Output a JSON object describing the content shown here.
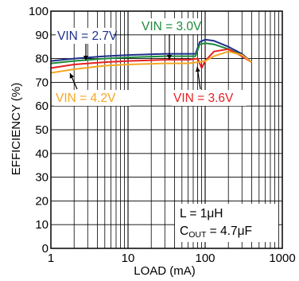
{
  "chart_data": {
    "type": "line",
    "xlabel": "LOAD (mA)",
    "ylabel": "EFFICIENCY (%)",
    "xscale": "log",
    "xlim": [
      1,
      1000
    ],
    "ylim": [
      0,
      100
    ],
    "grid": true,
    "x_ticks": [
      "1",
      "10",
      "100",
      "1000"
    ],
    "y_ticks": [
      "0",
      "10",
      "20",
      "30",
      "40",
      "50",
      "60",
      "70",
      "80",
      "90",
      "100"
    ],
    "series": [
      {
        "name": "VIN = 2.7V",
        "color": "#1f2f8a",
        "points": [
          [
            1,
            79
          ],
          [
            2,
            80
          ],
          [
            5,
            81
          ],
          [
            10,
            81.5
          ],
          [
            30,
            82
          ],
          [
            60,
            82
          ],
          [
            75,
            82
          ],
          [
            85,
            87
          ],
          [
            100,
            88
          ],
          [
            130,
            87.5
          ],
          [
            200,
            85
          ],
          [
            300,
            82
          ],
          [
            400,
            78.5
          ]
        ]
      },
      {
        "name": "VIN = 3.0V",
        "color": "#1e8a3c",
        "points": [
          [
            1,
            78
          ],
          [
            2,
            79
          ],
          [
            5,
            80
          ],
          [
            10,
            80.5
          ],
          [
            30,
            81
          ],
          [
            60,
            81
          ],
          [
            75,
            81
          ],
          [
            85,
            86
          ],
          [
            100,
            86.5
          ],
          [
            130,
            86
          ],
          [
            200,
            84
          ],
          [
            300,
            81.5
          ],
          [
            400,
            78.5
          ]
        ]
      },
      {
        "name": "VIN = 3.6V",
        "color": "#e62020",
        "points": [
          [
            1,
            76
          ],
          [
            2,
            77.5
          ],
          [
            5,
            78.5
          ],
          [
            10,
            79
          ],
          [
            30,
            79.5
          ],
          [
            60,
            79.5
          ],
          [
            80,
            80
          ],
          [
            90,
            76
          ],
          [
            100,
            79
          ],
          [
            130,
            83
          ],
          [
            200,
            84
          ],
          [
            300,
            81
          ],
          [
            400,
            78.5
          ]
        ]
      },
      {
        "name": "VIN = 4.2V",
        "color": "#f5a623",
        "points": [
          [
            1,
            74
          ],
          [
            2,
            75.5
          ],
          [
            5,
            77
          ],
          [
            10,
            77.5
          ],
          [
            30,
            78
          ],
          [
            60,
            78
          ],
          [
            80,
            78.5
          ],
          [
            100,
            79
          ],
          [
            130,
            81
          ],
          [
            200,
            83
          ],
          [
            300,
            81.5
          ],
          [
            400,
            78.5
          ]
        ]
      }
    ],
    "annotations": {
      "inductor": "L = 1μH",
      "cout_prefix": "C",
      "cout_sub": "OUT",
      "cout_value": " = 4.7μF"
    }
  }
}
